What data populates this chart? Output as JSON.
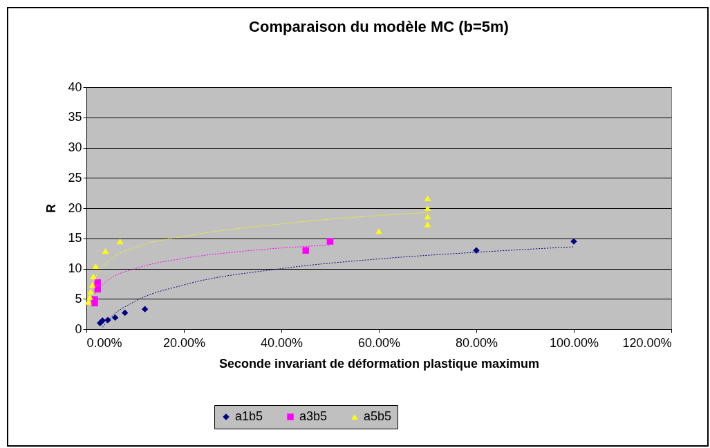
{
  "chart_data": {
    "type": "scatter",
    "title": "Comparaison du modèle MC (b=5m)",
    "xlabel": "Seconde invariant de déformation plastique maximum",
    "ylabel": "R",
    "xlim": [
      0,
      120
    ],
    "xticks": [
      {
        "value": 0,
        "label": "0.00%"
      },
      {
        "value": 20,
        "label": "20.00%"
      },
      {
        "value": 40,
        "label": "40.00%"
      },
      {
        "value": 60,
        "label": "60.00%"
      },
      {
        "value": 80,
        "label": "80.00%"
      },
      {
        "value": 100,
        "label": "100.00%"
      },
      {
        "value": 120,
        "label": "120.00%"
      }
    ],
    "ylim": [
      0,
      40
    ],
    "yticks": [
      0,
      5,
      10,
      15,
      20,
      25,
      30,
      35,
      40
    ],
    "grid": "y",
    "legend": "bottom",
    "series": [
      {
        "name": "a1b5",
        "color": "#000080",
        "marker": "diamond",
        "x": [
          2.8,
          3.3,
          4.4,
          5.9,
          7.9,
          12.0,
          80,
          100
        ],
        "values": [
          1.0,
          1.4,
          1.5,
          1.9,
          2.7,
          3.3,
          13.0,
          14.5
        ]
      },
      {
        "name": "a3b5",
        "color": "#ff00ff",
        "marker": "square",
        "x": [
          2.3,
          2.3,
          1.7,
          1.7,
          45,
          50
        ],
        "values": [
          7.7,
          6.6,
          4.9,
          4.3,
          13.0,
          14.5
        ]
      },
      {
        "name": "a5b5",
        "color": "#ffff00",
        "marker": "triangle",
        "x": [
          0.4,
          0.7,
          0.9,
          1.2,
          1.4,
          1.9,
          3.9,
          6.9,
          60,
          70,
          70,
          70,
          70
        ],
        "values": [
          4.5,
          5.3,
          6.2,
          7.3,
          8.7,
          10.4,
          12.9,
          14.5,
          16.2,
          21.6,
          20.0,
          18.6,
          17.3
        ]
      },
      {
        "type": "line",
        "color": "#000080",
        "line_style": "dotted",
        "marker": "none",
        "x": [
          3.3,
          5,
          10,
          20,
          40,
          60,
          80,
          100
        ],
        "values": [
          0.3,
          1.9,
          4.6,
          7.3,
          10.0,
          11.6,
          12.7,
          13.6
        ]
      },
      {
        "type": "line",
        "color": "#ff00ff",
        "line_style": "dotted",
        "marker": "none",
        "x": [
          1.7,
          3,
          5,
          10,
          20,
          30,
          50
        ],
        "values": [
          5.8,
          7.1,
          8.4,
          10.0,
          11.7,
          12.7,
          13.9
        ]
      },
      {
        "type": "line",
        "color": "#ffff00",
        "line_style": "dotted",
        "marker": "none",
        "x": [
          0.4,
          1,
          2,
          5,
          10,
          20,
          40,
          70
        ],
        "values": [
          4.0,
          6.7,
          8.7,
          11.5,
          13.5,
          15.3,
          17.4,
          19.3
        ]
      }
    ]
  }
}
